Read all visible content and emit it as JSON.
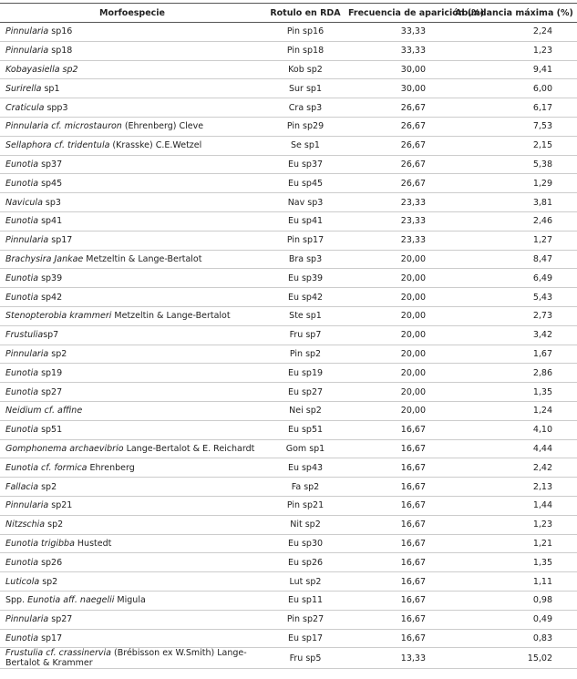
{
  "table": {
    "header": [
      "Morfoespecie",
      "Rotulo en RDA",
      "Frecuencia de aparición (%)",
      "Abundancia máxima (%)"
    ],
    "rows": [
      {
        "species": [
          {
            "text": "Pinnularia",
            "italic": true
          },
          {
            "text": " sp16"
          }
        ],
        "label": "Pin sp16",
        "frequency": "33,33",
        "abundance": "2,24"
      },
      {
        "species": [
          {
            "text": "Pinnularia",
            "italic": true
          },
          {
            "text": " sp18"
          }
        ],
        "label": "Pin sp18",
        "frequency": "33,33",
        "abundance": "1,23"
      },
      {
        "species": [
          {
            "text": "Kobayasiella sp2",
            "italic": true
          }
        ],
        "label": "Kob sp2",
        "frequency": "30,00",
        "abundance": "9,41"
      },
      {
        "species": [
          {
            "text": "Surirella",
            "italic": true
          },
          {
            "text": " sp1"
          }
        ],
        "label": "Sur sp1",
        "frequency": "30,00",
        "abundance": "6,00"
      },
      {
        "species": [
          {
            "text": "Craticula",
            "italic": true
          },
          {
            "text": " spp3"
          }
        ],
        "label": "Cra sp3",
        "frequency": "26,67",
        "abundance": "6,17"
      },
      {
        "species": [
          {
            "text": "Pinnularia cf. microstauron",
            "italic": true
          },
          {
            "text": " (Ehrenberg) Cleve"
          }
        ],
        "label": "Pin sp29",
        "frequency": "26,67",
        "abundance": "7,53"
      },
      {
        "species": [
          {
            "text": "Sellaphora cf. tridentula",
            "italic": true
          },
          {
            "text": " (Krasske) C.E.Wetzel"
          }
        ],
        "label": "Se sp1",
        "frequency": "26,67",
        "abundance": "2,15"
      },
      {
        "species": [
          {
            "text": "Eunotia",
            "italic": true
          },
          {
            "text": " sp37"
          }
        ],
        "label": "Eu sp37",
        "frequency": "26,67",
        "abundance": "5,38"
      },
      {
        "species": [
          {
            "text": "Eunotia",
            "italic": true
          },
          {
            "text": " sp45"
          }
        ],
        "label": "Eu sp45",
        "frequency": "26,67",
        "abundance": "1,29"
      },
      {
        "species": [
          {
            "text": "Navicula",
            "italic": true
          },
          {
            "text": " sp3"
          }
        ],
        "label": "Nav sp3",
        "frequency": "23,33",
        "abundance": "3,81"
      },
      {
        "species": [
          {
            "text": "Eunotia",
            "italic": true
          },
          {
            "text": " sp41"
          }
        ],
        "label": "Eu sp41",
        "frequency": "23,33",
        "abundance": "2,46"
      },
      {
        "species": [
          {
            "text": "Pinnularia",
            "italic": true
          },
          {
            "text": " sp17"
          }
        ],
        "label": "Pin sp17",
        "frequency": "23,33",
        "abundance": "1,27"
      },
      {
        "species": [
          {
            "text": "Brachysira Jankae",
            "italic": true
          },
          {
            "text": " Metzeltin & Lange-Bertalot"
          }
        ],
        "label": "Bra sp3",
        "frequency": "20,00",
        "abundance": "8,47"
      },
      {
        "species": [
          {
            "text": "Eunotia",
            "italic": true
          },
          {
            "text": " sp39"
          }
        ],
        "label": "Eu sp39",
        "frequency": "20,00",
        "abundance": "6,49"
      },
      {
        "species": [
          {
            "text": "Eunotia",
            "italic": true
          },
          {
            "text": " sp42"
          }
        ],
        "label": "Eu sp42",
        "frequency": "20,00",
        "abundance": "5,43"
      },
      {
        "species": [
          {
            "text": "Stenopterobia krammeri",
            "italic": true
          },
          {
            "text": " Metzeltin & Lange-Bertalot"
          }
        ],
        "label": "Ste sp1",
        "frequency": "20,00",
        "abundance": "2,73"
      },
      {
        "species": [
          {
            "text": "Frustulia",
            "italic": true
          },
          {
            "text": "sp7"
          }
        ],
        "label": "Fru sp7",
        "frequency": "20,00",
        "abundance": "3,42"
      },
      {
        "species": [
          {
            "text": "Pinnularia",
            "italic": true
          },
          {
            "text": " sp2"
          }
        ],
        "label": "Pin sp2",
        "frequency": "20,00",
        "abundance": "1,67"
      },
      {
        "species": [
          {
            "text": "Eunotia",
            "italic": true
          },
          {
            "text": " sp19"
          }
        ],
        "label": "Eu sp19",
        "frequency": "20,00",
        "abundance": "2,86"
      },
      {
        "species": [
          {
            "text": "Eunotia",
            "italic": true
          },
          {
            "text": " sp27"
          }
        ],
        "label": "Eu sp27",
        "frequency": "20,00",
        "abundance": "1,35"
      },
      {
        "species": [
          {
            "text": "Neidium cf. affine",
            "italic": true
          }
        ],
        "label": "Nei sp2",
        "frequency": "20,00",
        "abundance": "1,24"
      },
      {
        "species": [
          {
            "text": "Eunotia",
            "italic": true
          },
          {
            "text": " sp51"
          }
        ],
        "label": "Eu sp51",
        "frequency": "16,67",
        "abundance": "4,10"
      },
      {
        "species": [
          {
            "text": "Gomphonema archaevibrio",
            "italic": true
          },
          {
            "text": " Lange-Bertalot & E. Reichardt"
          }
        ],
        "label": "Gom sp1",
        "frequency": "16,67",
        "abundance": "4,44"
      },
      {
        "species": [
          {
            "text": "Eunotia cf. formica",
            "italic": true
          },
          {
            "text": " Ehrenberg"
          }
        ],
        "label": "Eu sp43",
        "frequency": "16,67",
        "abundance": "2,42"
      },
      {
        "species": [
          {
            "text": "Fallacia",
            "italic": true
          },
          {
            "text": " sp2"
          }
        ],
        "label": "Fa sp2",
        "frequency": "16,67",
        "abundance": "2,13"
      },
      {
        "species": [
          {
            "text": "Pinnularia",
            "italic": true
          },
          {
            "text": " sp21"
          }
        ],
        "label": "Pin sp21",
        "frequency": "16,67",
        "abundance": "1,44"
      },
      {
        "species": [
          {
            "text": "Nitzschia",
            "italic": true
          },
          {
            "text": " sp2"
          }
        ],
        "label": "Nit sp2",
        "frequency": "16,67",
        "abundance": "1,23"
      },
      {
        "species": [
          {
            "text": "Eunotia trigibba",
            "italic": true
          },
          {
            "text": " Hustedt"
          }
        ],
        "label": "Eu sp30",
        "frequency": "16,67",
        "abundance": "1,21"
      },
      {
        "species": [
          {
            "text": "Eunotia",
            "italic": true
          },
          {
            "text": " sp26"
          }
        ],
        "label": "Eu sp26",
        "frequency": "16,67",
        "abundance": "1,35"
      },
      {
        "species": [
          {
            "text": "Luticola",
            "italic": true
          },
          {
            "text": " sp2"
          }
        ],
        "label": "Lut sp2",
        "frequency": "16,67",
        "abundance": "1,11"
      },
      {
        "species": [
          {
            "text": "Spp. "
          },
          {
            "text": "Eunotia aff. naegelii",
            "italic": true
          },
          {
            "text": " Migula"
          }
        ],
        "label": "Eu sp11",
        "frequency": "16,67",
        "abundance": "0,98"
      },
      {
        "species": [
          {
            "text": "Pinnularia",
            "italic": true
          },
          {
            "text": " sp27"
          }
        ],
        "label": "Pin sp27",
        "frequency": "16,67",
        "abundance": "0,49"
      },
      {
        "species": [
          {
            "text": "Eunotia",
            "italic": true
          },
          {
            "text": " sp17"
          }
        ],
        "label": "Eu sp17",
        "frequency": "16,67",
        "abundance": "0,83"
      },
      {
        "species": [
          {
            "text": "Frustulia cf. crassinervia",
            "italic": true
          },
          {
            "text": " (Brébisson ex W.Smith) Lange-Bertalot & Krammer"
          }
        ],
        "label": "Fru sp5",
        "frequency": "13,33",
        "abundance": "15,02"
      }
    ]
  }
}
